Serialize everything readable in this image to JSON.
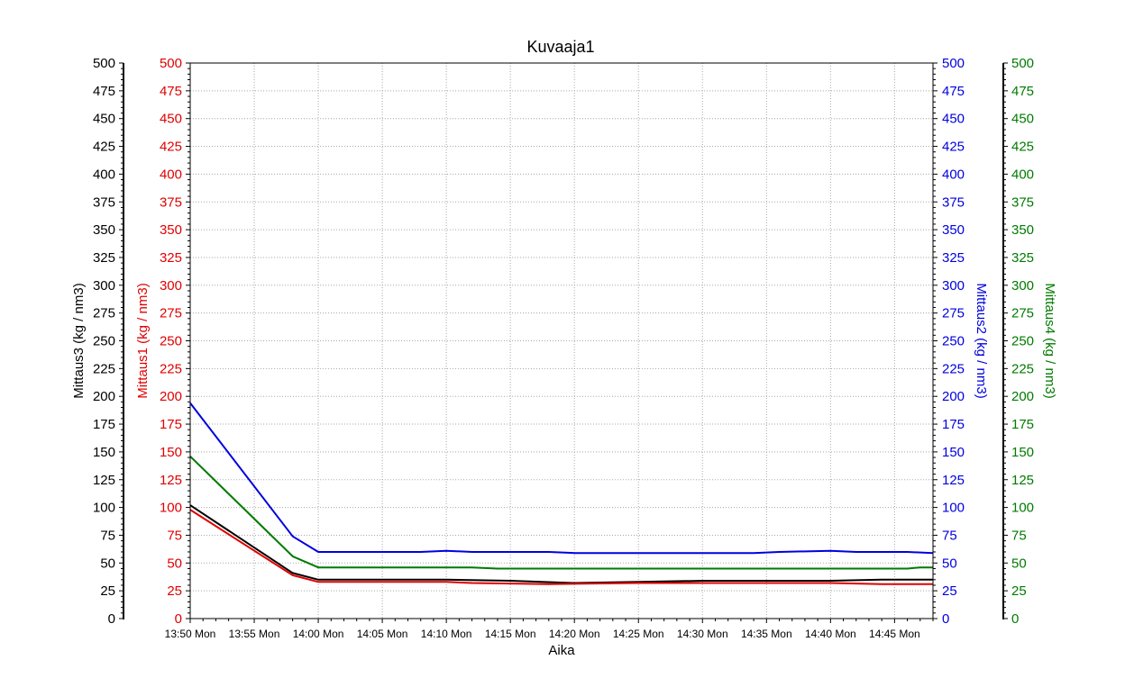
{
  "chart_data": {
    "type": "line",
    "title": "Kuvaaja1",
    "xlabel": "Aika",
    "x_unit": "minutes",
    "x_ticks": [
      {
        "minute": 0,
        "label": "13:50 Mon"
      },
      {
        "minute": 5,
        "label": "13:55 Mon"
      },
      {
        "minute": 10,
        "label": "14:00 Mon"
      },
      {
        "minute": 15,
        "label": "14:05 Mon"
      },
      {
        "minute": 20,
        "label": "14:10 Mon"
      },
      {
        "minute": 25,
        "label": "14:15 Mon"
      },
      {
        "minute": 30,
        "label": "14:20 Mon"
      },
      {
        "minute": 35,
        "label": "14:25 Mon"
      },
      {
        "minute": 40,
        "label": "14:30 Mon"
      },
      {
        "minute": 45,
        "label": "14:35 Mon"
      },
      {
        "minute": 50,
        "label": "14:40 Mon"
      },
      {
        "minute": 55,
        "label": "14:45 Mon"
      }
    ],
    "xlim": [
      0,
      58
    ],
    "ylim": [
      0,
      500
    ],
    "y_ticks": [
      0,
      25,
      50,
      75,
      100,
      125,
      150,
      175,
      200,
      225,
      250,
      275,
      300,
      325,
      350,
      375,
      400,
      425,
      450,
      475,
      500
    ],
    "grid": true,
    "axes": [
      {
        "id": "mittaus3",
        "label": "Mittaus3    (kg / nm3)",
        "side": "left-outer",
        "color": "#000000"
      },
      {
        "id": "mittaus1",
        "label": "Mittaus1    (kg / nm3)",
        "side": "left-inner",
        "color": "#e00000"
      },
      {
        "id": "mittaus2",
        "label": "Mittaus2    (kg / nm3)",
        "side": "right-inner",
        "color": "#0000e0"
      },
      {
        "id": "mittaus4",
        "label": "Mittaus4    (kg / nm3)",
        "side": "right-outer",
        "color": "#007a00"
      }
    ],
    "series": [
      {
        "name": "Mittaus2",
        "color": "#0000e0",
        "points": [
          [
            0,
            194
          ],
          [
            8,
            74
          ],
          [
            10,
            60
          ],
          [
            15,
            60
          ],
          [
            18,
            60
          ],
          [
            20,
            61
          ],
          [
            22,
            60
          ],
          [
            28,
            60
          ],
          [
            30,
            59
          ],
          [
            40,
            59
          ],
          [
            44,
            59
          ],
          [
            46,
            60
          ],
          [
            50,
            61
          ],
          [
            52,
            60
          ],
          [
            56,
            60
          ],
          [
            58,
            59
          ]
        ]
      },
      {
        "name": "Mittaus4",
        "color": "#007a00",
        "points": [
          [
            0,
            146
          ],
          [
            8,
            56
          ],
          [
            10,
            46
          ],
          [
            15,
            46
          ],
          [
            20,
            46
          ],
          [
            22,
            46
          ],
          [
            24,
            45
          ],
          [
            30,
            45
          ],
          [
            40,
            45
          ],
          [
            50,
            45
          ],
          [
            56,
            45
          ],
          [
            57,
            46
          ],
          [
            58,
            46
          ]
        ]
      },
      {
        "name": "Mittaus3",
        "color": "#000000",
        "points": [
          [
            0,
            102
          ],
          [
            8,
            41
          ],
          [
            10,
            35
          ],
          [
            15,
            35
          ],
          [
            20,
            35
          ],
          [
            25,
            34
          ],
          [
            30,
            32
          ],
          [
            35,
            33
          ],
          [
            40,
            34
          ],
          [
            45,
            34
          ],
          [
            50,
            34
          ],
          [
            54,
            35
          ],
          [
            58,
            35
          ]
        ]
      },
      {
        "name": "Mittaus1",
        "color": "#e00000",
        "points": [
          [
            0,
            98
          ],
          [
            8,
            39
          ],
          [
            10,
            33
          ],
          [
            15,
            33
          ],
          [
            20,
            33
          ],
          [
            22,
            32
          ],
          [
            28,
            31
          ],
          [
            35,
            32
          ],
          [
            40,
            32
          ],
          [
            45,
            32
          ],
          [
            50,
            32
          ],
          [
            54,
            31
          ],
          [
            58,
            31
          ]
        ]
      }
    ]
  }
}
